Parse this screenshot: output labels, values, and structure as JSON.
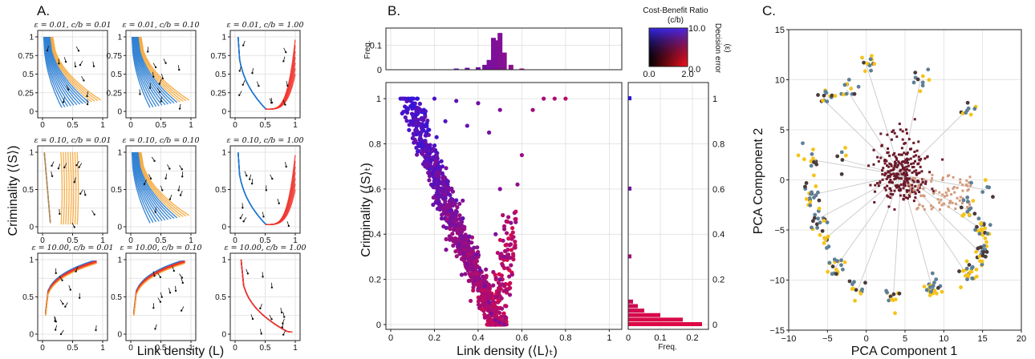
{
  "panel_labels": {
    "a": "A.",
    "b": "B.",
    "c": "C."
  },
  "panel_a": {
    "ylabel": "Criminality (⟨S⟩)",
    "xlabel": "Link density (L)",
    "ticks_x": [
      "0",
      "0.5",
      "1"
    ],
    "ticks_y": [
      "0",
      "0.25",
      "0.5",
      "0.75",
      "1"
    ],
    "colors": {
      "blue": "#1f77d0",
      "orange": "#f5a533",
      "red": "#f0352e",
      "tan": "#b08a5e",
      "arrow": "#111111"
    },
    "subplots": [
      {
        "title": "ε = 0.01, c/b = 0.01",
        "regime": "low-low"
      },
      {
        "title": "ε = 0.01, c/b = 0.10",
        "regime": "low-mid"
      },
      {
        "title": "ε = 0.01, c/b = 1.00",
        "regime": "red-right"
      },
      {
        "title": "ε = 0.10, c/b = 0.01",
        "regime": "orange-mid"
      },
      {
        "title": "ε = 0.10, c/b = 0.10",
        "regime": "low-mid"
      },
      {
        "title": "ε = 0.10, c/b = 1.00",
        "regime": "red-right"
      },
      {
        "title": "ε = 10.00, c/b = 0.01",
        "regime": "red-top"
      },
      {
        "title": "ε = 10.00, c/b = 0.10",
        "regime": "red-top"
      },
      {
        "title": "ε = 10.00, c/b = 1.00",
        "regime": "red-bottom"
      }
    ]
  },
  "panel_b": {
    "xlabel": "Link density (⟨L⟩ₜ)",
    "ylabel": "Criminality (⟨S⟩ₜ)",
    "freq_label": "Freq.",
    "colorbar_title": "Cost-Benefit Ratio",
    "colorbar_xsym": "(c/b)",
    "colorbar_ylabel": "Decision error",
    "colorbar_ysym": "(ε)",
    "colorbar_x_ticks": [
      "0.0",
      "2.0"
    ],
    "colorbar_y_ticks": [
      "10.0",
      "0.0"
    ],
    "ticks_x": [
      "0",
      "0.2",
      "0.4",
      "0.6",
      "0.8",
      "1"
    ],
    "ticks_y": [
      "0",
      "0.2",
      "0.4",
      "0.6",
      "0.8",
      "1"
    ],
    "top_hist_ticks": [
      "0",
      "0.1"
    ],
    "right_hist_ticks": [
      "0",
      "0.1",
      "0.2"
    ]
  },
  "panel_c": {
    "xlabel": "PCA Component 1",
    "ylabel": "PCA Component 2",
    "ticks_x": [
      "−10",
      "−5",
      "0",
      "5",
      "10",
      "15",
      "20"
    ],
    "ticks_y": [
      "−15",
      "−10",
      "−5",
      "0",
      "5",
      "10",
      "15"
    ],
    "colors": {
      "yellow": "#f5c31a",
      "slate": "#5e7f96",
      "dark": "#4a3a3a",
      "maroon": "#6b1a2a",
      "peach": "#d49a7a"
    }
  },
  "chart_data": [
    {
      "type": "line",
      "panel": "A",
      "description_key": "panel_a",
      "xlim": [
        0,
        1
      ],
      "ylim": [
        0,
        1
      ],
      "grid": true
    },
    {
      "type": "scatter",
      "panel": "B",
      "xlim": [
        0,
        1.05
      ],
      "ylim": [
        0,
        1.05
      ],
      "series": [
        {
          "name": "",
          "points": [
            [
              0.08,
              1.0
            ],
            [
              0.1,
              0.98
            ],
            [
              0.12,
              0.93
            ],
            [
              0.15,
              0.86
            ],
            [
              0.18,
              0.78
            ],
            [
              0.22,
              0.7
            ],
            [
              0.26,
              0.62
            ],
            [
              0.3,
              0.55
            ],
            [
              0.33,
              0.47
            ],
            [
              0.36,
              0.39
            ],
            [
              0.39,
              0.31
            ],
            [
              0.41,
              0.24
            ],
            [
              0.43,
              0.17
            ],
            [
              0.45,
              0.1
            ],
            [
              0.46,
              0.05
            ],
            [
              0.48,
              0.02
            ],
            [
              0.5,
              0.01
            ],
            [
              0.52,
              0.0
            ],
            [
              0.5,
              0.2
            ],
            [
              0.48,
              0.4
            ],
            [
              0.5,
              0.6
            ],
            [
              0.52,
              0.3
            ],
            [
              0.55,
              0.45
            ],
            [
              0.58,
              0.62
            ],
            [
              0.6,
              0.75
            ],
            [
              0.65,
              0.95
            ],
            [
              0.7,
              1.0
            ],
            [
              0.75,
              1.0
            ],
            [
              0.8,
              1.0
            ],
            [
              0.2,
              1.0
            ],
            [
              0.3,
              0.99
            ],
            [
              0.4,
              0.98
            ],
            [
              0.5,
              0.95
            ],
            [
              0.25,
              0.9
            ],
            [
              0.35,
              0.88
            ],
            [
              0.45,
              0.85
            ]
          ]
        }
      ],
      "top_hist": {
        "x_centers": [
          0.3,
          0.35,
          0.4,
          0.43,
          0.45,
          0.47,
          0.49,
          0.5,
          0.52,
          0.55,
          0.6
        ],
        "freq": [
          0.005,
          0.008,
          0.01,
          0.02,
          0.04,
          0.13,
          0.12,
          0.15,
          0.07,
          0.02,
          0.005
        ]
      },
      "right_hist": {
        "y_centers": [
          0.0,
          0.02,
          0.04,
          0.06,
          0.08,
          0.1,
          0.3,
          0.6,
          1.0
        ],
        "freq": [
          0.23,
          0.17,
          0.1,
          0.05,
          0.03,
          0.015,
          0.01,
          0.01,
          0.01
        ]
      }
    },
    {
      "type": "scatter",
      "panel": "C",
      "xlim": [
        -10,
        20
      ],
      "ylim": [
        -15,
        15
      ],
      "grid": true,
      "center": [
        4.5,
        0.5
      ],
      "clusters": [
        {
          "center": [
            -7,
            2
          ],
          "n": 14
        },
        {
          "center": [
            -7,
            -1.5
          ],
          "n": 18
        },
        {
          "center": [
            -6.5,
            -4
          ],
          "n": 16
        },
        {
          "center": [
            -5.5,
            -6
          ],
          "n": 10
        },
        {
          "center": [
            -4,
            -8.8
          ],
          "n": 18
        },
        {
          "center": [
            -1,
            -10.8
          ],
          "n": 12
        },
        {
          "center": [
            3.5,
            -11.5
          ],
          "n": 12
        },
        {
          "center": [
            8.5,
            -10.8
          ],
          "n": 22
        },
        {
          "center": [
            13,
            -9.5
          ],
          "n": 20
        },
        {
          "center": [
            15,
            -7.5
          ],
          "n": 24
        },
        {
          "center": [
            15,
            -5
          ],
          "n": 20
        },
        {
          "center": [
            13,
            -3
          ],
          "n": 14
        },
        {
          "center": [
            15.5,
            -1
          ],
          "n": 6
        },
        {
          "center": [
            -5.5,
            8
          ],
          "n": 12
        },
        {
          "center": [
            -2.5,
            9
          ],
          "n": 12
        },
        {
          "center": [
            0,
            11.5
          ],
          "n": 12
        },
        {
          "center": [
            7,
            10
          ],
          "n": 10
        },
        {
          "center": [
            13,
            7
          ],
          "n": 10
        },
        {
          "center": [
            -3,
            2
          ],
          "n": 6
        }
      ]
    }
  ]
}
